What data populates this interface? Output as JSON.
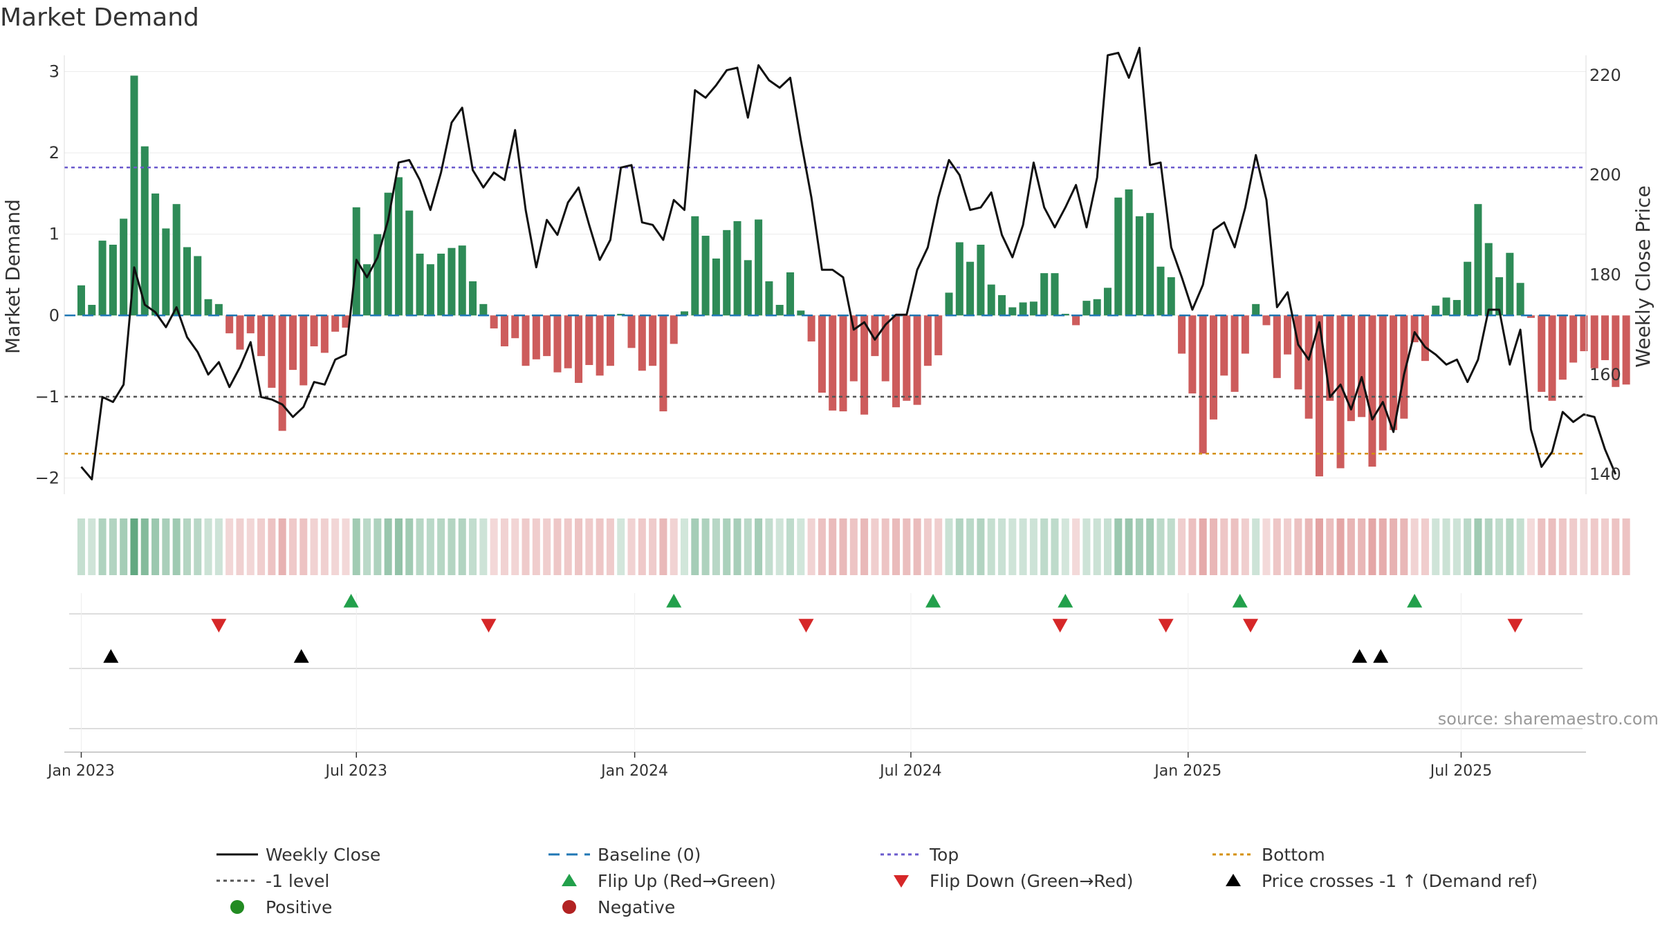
{
  "chart_data": {
    "type": "bar",
    "title": "Market Demand",
    "ylabel_left": "Market Demand",
    "ylabel_right": "Weekly Close Price",
    "left_ylim": [
      -2.2,
      3.2
    ],
    "right_ylim": [
      136,
      224
    ],
    "left_ticks": [
      -2,
      -1,
      0,
      1,
      2,
      3
    ],
    "right_ticks": [
      140,
      160,
      180,
      200,
      220
    ],
    "x_ticks": [
      {
        "week": 0,
        "label": "Jan 2023"
      },
      {
        "week": 26,
        "label": "Jul 2023"
      },
      {
        "week": 52.3,
        "label": "Jan 2024"
      },
      {
        "week": 78.4,
        "label": "Jul 2024"
      },
      {
        "week": 104.6,
        "label": "Jan 2025"
      },
      {
        "week": 130.4,
        "label": "Jul 2025"
      }
    ],
    "x_range": [
      -1.6,
      142.2
    ],
    "reference_lines": {
      "top": 1.82,
      "minus_one": -1.0,
      "bottom": -1.7,
      "baseline": 0
    },
    "demand": [
      0.37,
      0.13,
      0.92,
      0.87,
      1.19,
      2.95,
      2.08,
      1.5,
      1.07,
      1.37,
      0.84,
      0.73,
      0.2,
      0.14,
      -0.22,
      -0.42,
      -0.22,
      -0.5,
      -0.89,
      -1.42,
      -0.67,
      -0.86,
      -0.38,
      -0.46,
      -0.2,
      -0.15,
      1.33,
      0.63,
      1.0,
      1.51,
      1.7,
      1.29,
      0.76,
      0.63,
      0.76,
      0.83,
      0.86,
      0.42,
      0.14,
      -0.16,
      -0.38,
      -0.28,
      -0.62,
      -0.54,
      -0.5,
      -0.7,
      -0.65,
      -0.83,
      -0.61,
      -0.74,
      -0.62,
      0.02,
      -0.4,
      -0.68,
      -0.62,
      -1.18,
      -0.35,
      0.05,
      1.22,
      0.98,
      0.7,
      1.05,
      1.16,
      0.68,
      1.18,
      0.42,
      0.13,
      0.53,
      0.06,
      -0.32,
      -0.95,
      -1.17,
      -1.18,
      -0.81,
      -1.22,
      -0.5,
      -0.81,
      -1.13,
      -1.05,
      -1.1,
      -0.62,
      -0.49,
      0.28,
      0.9,
      0.66,
      0.87,
      0.38,
      0.25,
      0.1,
      0.16,
      0.17,
      0.52,
      0.52,
      0.02,
      -0.12,
      0.18,
      0.2,
      0.34,
      1.45,
      1.55,
      1.22,
      1.26,
      0.6,
      0.47,
      -0.47,
      -0.96,
      -1.7,
      -1.28,
      -0.74,
      -0.94,
      -0.47,
      0.14,
      -0.12,
      -0.77,
      -0.48,
      -0.91,
      -1.27,
      -1.98,
      -1.05,
      -1.88,
      -1.3,
      -1.25,
      -1.86,
      -1.66,
      -1.41,
      -1.27,
      -0.33,
      -0.56,
      0.12,
      0.22,
      0.19,
      0.66,
      1.37,
      0.89,
      0.47,
      0.77,
      0.4,
      -0.03,
      -0.94,
      -1.05,
      -0.79,
      -0.58,
      -0.44,
      -0.65,
      -0.55,
      -0.88,
      -0.85
    ],
    "weekly_close": [
      141.5,
      139.0,
      155.5,
      154.5,
      158.0,
      181.5,
      174.0,
      172.5,
      169.5,
      173.5,
      167.5,
      164.5,
      160.0,
      162.5,
      157.5,
      161.5,
      166.5,
      155.5,
      155.0,
      154.0,
      151.5,
      153.5,
      158.5,
      158.0,
      163.0,
      164.0,
      183.0,
      179.5,
      183.5,
      191.0,
      202.5,
      203.0,
      199.0,
      193.0,
      200.5,
      210.5,
      213.5,
      201.0,
      197.5,
      200.5,
      199.0,
      209.0,
      193.0,
      181.5,
      191.0,
      188.0,
      194.5,
      197.5,
      190.0,
      183.0,
      187.0,
      201.5,
      202.0,
      190.5,
      190.0,
      187.0,
      195.0,
      193.0,
      217.0,
      215.5,
      218.0,
      221.0,
      221.5,
      211.5,
      222.0,
      219.0,
      217.5,
      219.5,
      207.0,
      195.5,
      181.0,
      181.0,
      179.5,
      169.0,
      170.5,
      167.0,
      170.0,
      172.0,
      172.0,
      181.0,
      185.5,
      195.5,
      203.0,
      200.0,
      193.0,
      193.5,
      196.5,
      188.0,
      183.5,
      190.0,
      202.5,
      193.5,
      189.5,
      193.5,
      198.0,
      189.5,
      199.5,
      224.0,
      224.5,
      219.5,
      225.5,
      202.0,
      202.5,
      185.5,
      179.5,
      173.0,
      178.0,
      189.0,
      190.5,
      185.5,
      193.5,
      204.0,
      195.0,
      173.5,
      176.5,
      166.0,
      163.0,
      170.5,
      155.5,
      158.0,
      153.0,
      159.5,
      151.0,
      154.5,
      148.5,
      160.0,
      168.5,
      165.5,
      164.0,
      162.0,
      163.0,
      158.5,
      163.0,
      173.0,
      173.0,
      162.0,
      169.0,
      149.0,
      141.5,
      144.5,
      152.5,
      150.5,
      152.0,
      151.5,
      145.0,
      140.0
    ],
    "flip_up_weeks": [
      25.5,
      56,
      80.5,
      93,
      109.5,
      126
    ],
    "flip_down_weeks": [
      13,
      38.5,
      68.5,
      92.5,
      102.5,
      110.5,
      135.5
    ],
    "price_cross_weeks": [
      2.8,
      20.8,
      120.8,
      122.8
    ],
    "legend": {
      "weekly_close": "Weekly Close",
      "baseline": "Baseline (0)",
      "top": "Top",
      "bottom": "Bottom",
      "minus_one": "-1 level",
      "flip_up": "Flip Up (Red→Green)",
      "flip_down": "Flip Down (Green→Red)",
      "price_cross": "Price crosses -1 ↑ (Demand ref)",
      "positive": "Positive",
      "negative": "Negative"
    },
    "source": "source: sharemaestro.com"
  },
  "colors": {
    "positive_bar": "#2e8b57",
    "negative_bar": "#cd5c5c",
    "price_line": "#111111",
    "baseline": "#1f77b4",
    "top": "#6a5acd",
    "bottom": "#d4900a",
    "minus_one": "#555555",
    "flip_up": "#22a04b",
    "flip_down": "#d62728",
    "price_cross": "#000000",
    "positive_dot": "#228b22",
    "negative_dot": "#b22222"
  }
}
